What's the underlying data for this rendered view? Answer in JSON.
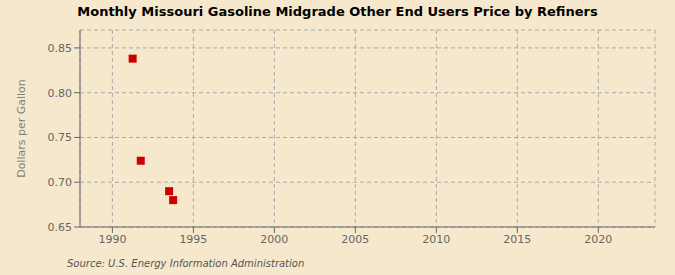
{
  "chart_data": {
    "type": "scatter",
    "title": "Monthly Missouri Gasoline Midgrade Other End Users Price by Refiners",
    "ylabel": "Dollars per Gallon",
    "source": "Source: U.S. Energy Information Administration",
    "x": [
      1991.25,
      1991.75,
      1993.5,
      1993.75
    ],
    "values": [
      0.838,
      0.724,
      0.69,
      0.68
    ],
    "color": "#cc0000",
    "marker": "square",
    "xlim": [
      1988.0,
      2023.5
    ],
    "ylim": [
      0.65,
      0.87
    ],
    "xticks": [
      1990,
      1995,
      2000,
      2005,
      2010,
      2015,
      2020
    ],
    "yticks": [
      0.65,
      {
        "value": 0.7,
        "label": "0.70"
      },
      0.75,
      {
        "value": 0.8,
        "label": "0.80"
      },
      0.85
    ],
    "grid": true
  }
}
